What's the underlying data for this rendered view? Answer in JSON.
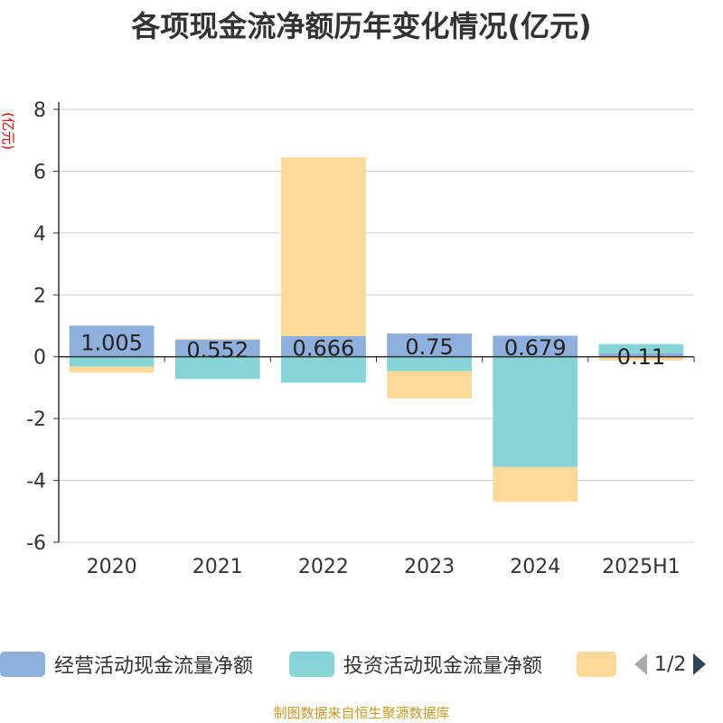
{
  "title": "各项现金流净额历年变化情况(亿元)",
  "source": "制图数据来自恒生聚源数据库",
  "legend": {
    "items": [
      {
        "label": "经营活动现金流量净额",
        "color": "#8eaedc"
      },
      {
        "label": "投资活动现金流量净额",
        "color": "#87d4d6"
      },
      {
        "label": "",
        "color": "#fed898"
      }
    ],
    "page": "1/2"
  },
  "colors": {
    "source": "#c49a2a",
    "ylabel": "#d00000",
    "axis": "#333333",
    "grid": "#cccccc"
  },
  "chart_data": {
    "type": "bar",
    "stacked": true,
    "categories": [
      "2020",
      "2021",
      "2022",
      "2023",
      "2024",
      "2025H1"
    ],
    "ylabel": "(亿元)",
    "ylim": [
      -6,
      8
    ],
    "yticks": [
      -6,
      -4,
      -2,
      0,
      2,
      4,
      6,
      8
    ],
    "grid": true,
    "legend_position": "bottom",
    "series": [
      {
        "name": "经营活动现金流量净额",
        "color": "#8eaedc",
        "values": [
          1.005,
          0.552,
          0.666,
          0.75,
          0.679,
          0.11
        ],
        "labels": [
          "1.005",
          "0.552",
          "0.666",
          "0.75",
          "0.679",
          "0.11"
        ]
      },
      {
        "name": "投资活动现金流量净额",
        "color": "#87d4d6",
        "values": [
          -0.32,
          -0.72,
          -0.84,
          -0.47,
          -3.57,
          0.3
        ]
      },
      {
        "name": "",
        "color": "#fed898",
        "values": [
          -0.2,
          0.03,
          5.78,
          -0.88,
          -1.12,
          -0.12
        ]
      }
    ]
  }
}
